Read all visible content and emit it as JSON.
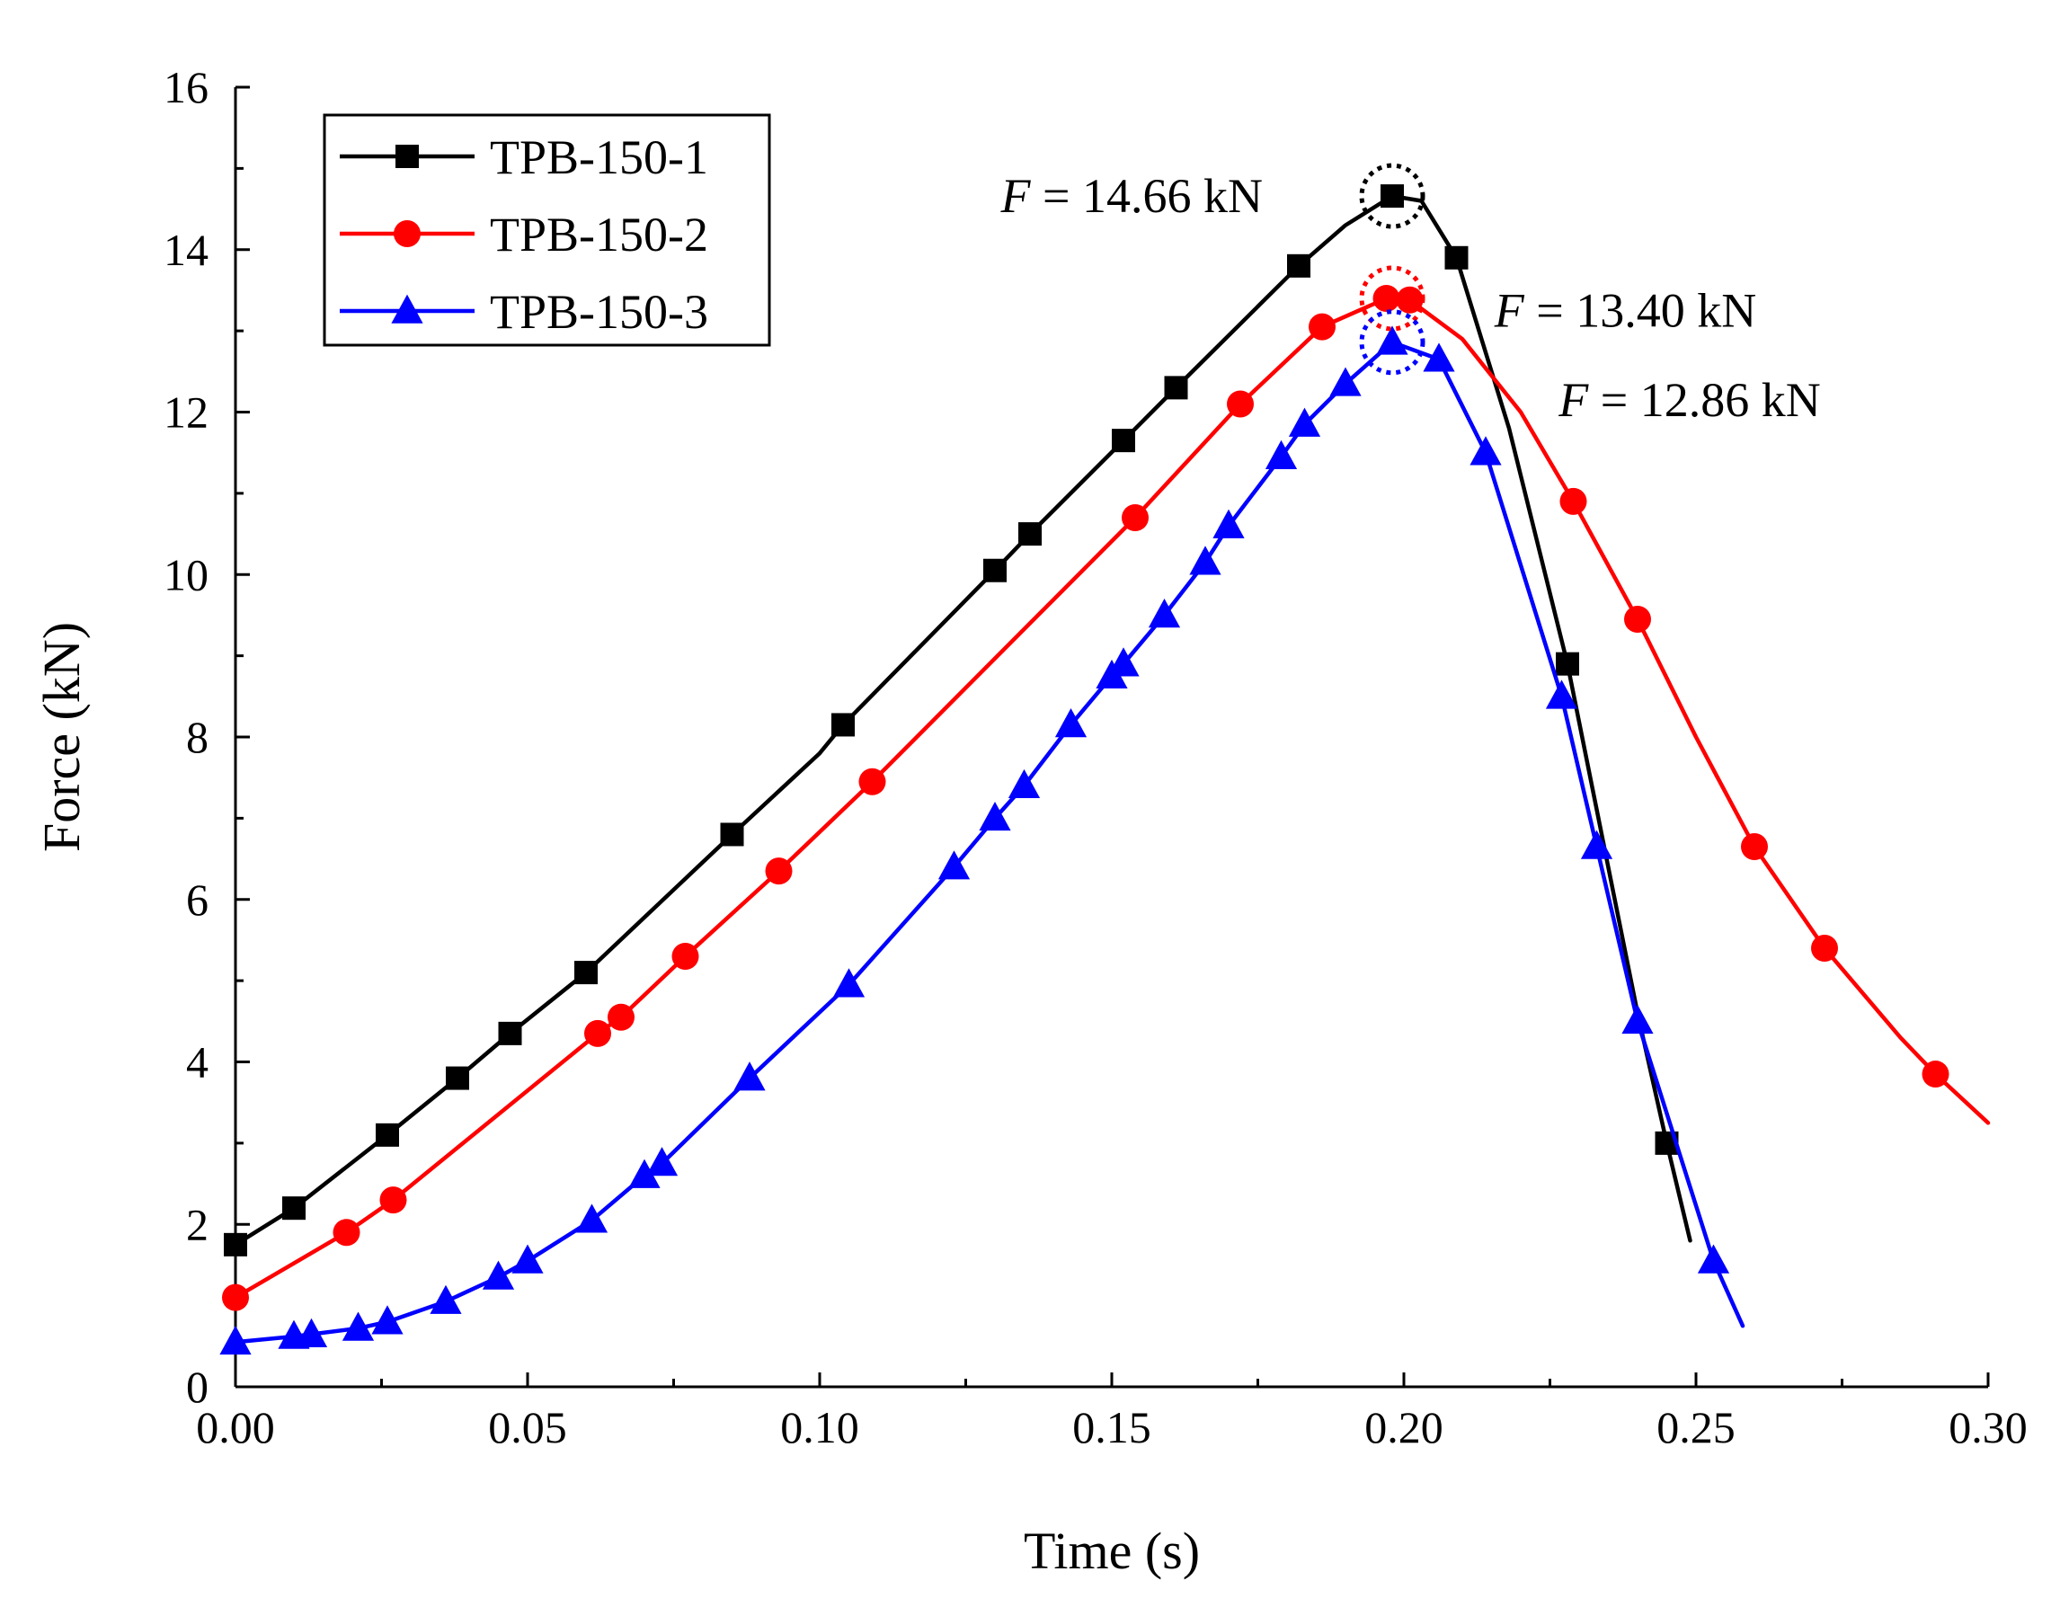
{
  "chart_data": {
    "type": "line",
    "title": "",
    "xlabel": "Time (s)",
    "ylabel": "Force (kN)",
    "xlim": [
      0,
      0.3
    ],
    "ylim": [
      0,
      16
    ],
    "x_ticks": [
      0,
      0.05,
      0.1,
      0.15,
      0.2,
      0.25,
      0.3
    ],
    "x_tick_labels": [
      "0.00",
      "0.05",
      "0.10",
      "0.15",
      "0.20",
      "0.25",
      "0.30"
    ],
    "y_ticks": [
      0,
      2,
      4,
      6,
      8,
      10,
      12,
      14,
      16
    ],
    "y_tick_labels": [
      "0",
      "2",
      "4",
      "6",
      "8",
      "10",
      "12",
      "14",
      "16"
    ],
    "grid": false,
    "legend_position": "top-left",
    "series": [
      {
        "name": "TPB-150-1",
        "color": "#000000",
        "marker": "square",
        "x": [
          0.0,
          0.01,
          0.026,
          0.038,
          0.047,
          0.06,
          0.085,
          0.104,
          0.13,
          0.136,
          0.152,
          0.161,
          0.182,
          0.198,
          0.209,
          0.228,
          0.245
        ],
        "y": [
          1.75,
          2.2,
          3.1,
          3.8,
          4.35,
          5.1,
          6.8,
          8.15,
          10.05,
          10.5,
          11.65,
          12.3,
          13.8,
          14.66,
          13.9,
          8.9,
          3.0
        ],
        "curve_x": [
          0.0,
          0.01,
          0.026,
          0.038,
          0.047,
          0.06,
          0.085,
          0.1,
          0.104,
          0.13,
          0.136,
          0.152,
          0.161,
          0.182,
          0.19,
          0.198,
          0.203,
          0.209,
          0.218,
          0.228,
          0.24,
          0.245,
          0.249
        ],
        "curve_y": [
          1.75,
          2.2,
          3.1,
          3.8,
          4.35,
          5.1,
          6.8,
          7.8,
          8.15,
          10.05,
          10.5,
          11.65,
          12.3,
          13.8,
          14.3,
          14.66,
          14.6,
          13.9,
          11.8,
          8.9,
          4.6,
          3.0,
          1.8
        ],
        "marker_size": 0.018
      },
      {
        "name": "TPB-150-2",
        "color": "#ff0000",
        "marker": "circle",
        "x": [
          0.0,
          0.019,
          0.027,
          0.062,
          0.066,
          0.077,
          0.093,
          0.109,
          0.154,
          0.172,
          0.186,
          0.197,
          0.201,
          0.229,
          0.24,
          0.26,
          0.272,
          0.291
        ],
        "y": [
          1.1,
          1.9,
          2.3,
          4.35,
          4.55,
          5.3,
          6.35,
          7.45,
          10.7,
          12.1,
          13.05,
          13.4,
          13.38,
          10.9,
          9.45,
          6.65,
          5.4,
          3.85
        ],
        "curve_x": [
          0.0,
          0.019,
          0.027,
          0.062,
          0.066,
          0.077,
          0.093,
          0.109,
          0.154,
          0.172,
          0.186,
          0.197,
          0.201,
          0.21,
          0.22,
          0.229,
          0.24,
          0.25,
          0.26,
          0.272,
          0.285,
          0.291,
          0.3
        ],
        "curve_y": [
          1.1,
          1.9,
          2.3,
          4.35,
          4.55,
          5.3,
          6.35,
          7.45,
          10.7,
          12.1,
          13.05,
          13.4,
          13.38,
          12.9,
          12.0,
          10.9,
          9.45,
          8.0,
          6.65,
          5.4,
          4.3,
          3.85,
          3.25
        ],
        "marker_size": 0.019
      },
      {
        "name": "TPB-150-3",
        "color": "#0000ff",
        "marker": "triangle",
        "x": [
          0.0,
          0.01,
          0.013,
          0.021,
          0.026,
          0.036,
          0.045,
          0.05,
          0.061,
          0.07,
          0.073,
          0.088,
          0.105,
          0.123,
          0.13,
          0.135,
          0.143,
          0.15,
          0.152,
          0.159,
          0.166,
          0.17,
          0.179,
          0.183,
          0.19,
          0.198,
          0.206,
          0.214,
          0.227,
          0.233,
          0.24,
          0.253
        ],
        "y": [
          0.55,
          0.62,
          0.64,
          0.72,
          0.8,
          1.05,
          1.35,
          1.55,
          2.05,
          2.6,
          2.75,
          3.8,
          4.95,
          6.4,
          7.0,
          7.4,
          8.15,
          8.75,
          8.9,
          9.5,
          10.15,
          10.6,
          11.45,
          11.85,
          12.35,
          12.86,
          12.65,
          11.5,
          8.5,
          6.65,
          4.5,
          1.55
        ],
        "curve_x": [
          0.0,
          0.01,
          0.021,
          0.026,
          0.036,
          0.045,
          0.05,
          0.061,
          0.07,
          0.073,
          0.088,
          0.105,
          0.123,
          0.13,
          0.135,
          0.143,
          0.15,
          0.152,
          0.159,
          0.166,
          0.17,
          0.179,
          0.183,
          0.19,
          0.198,
          0.206,
          0.214,
          0.227,
          0.233,
          0.24,
          0.253,
          0.258
        ],
        "curve_y": [
          0.55,
          0.62,
          0.72,
          0.8,
          1.05,
          1.35,
          1.55,
          2.05,
          2.6,
          2.75,
          3.8,
          4.95,
          6.4,
          7.0,
          7.4,
          8.15,
          8.75,
          8.9,
          9.5,
          10.15,
          10.6,
          11.45,
          11.85,
          12.35,
          12.86,
          12.65,
          11.5,
          8.5,
          6.65,
          4.5,
          1.55,
          0.75
        ],
        "marker_size": 0.017
      }
    ],
    "annotations": [
      {
        "italic": "F",
        "text": " = 14.66 kN",
        "series": "TPB-150-1",
        "point_x": 0.198,
        "point_y": 14.66,
        "label_x": 0.131,
        "label_y": 14.66,
        "circle_color": "#000000"
      },
      {
        "italic": "F",
        "text": " = 13.40 kN",
        "series": "TPB-150-2",
        "point_x": 0.198,
        "point_y": 13.4,
        "label_x": 0.2155,
        "label_y": 13.25,
        "circle_color": "#ff0000"
      },
      {
        "italic": "F",
        "text": " = 12.86 kN",
        "series": "TPB-150-3",
        "point_x": 0.198,
        "point_y": 12.86,
        "label_x": 0.2265,
        "label_y": 12.15,
        "circle_color": "#0000ff"
      }
    ]
  }
}
